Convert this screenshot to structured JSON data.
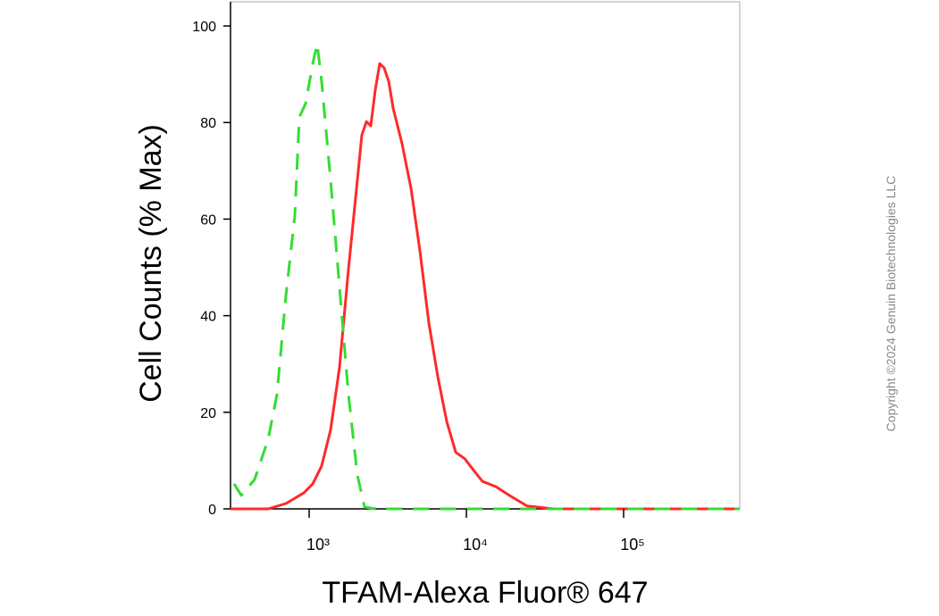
{
  "chart_data": {
    "type": "line",
    "x_label": "TFAM-Alexa Fluor® 647",
    "y_label": "Cell Counts (% Max)",
    "watermark": "Copyright ©2024 Genuin Biotechnologies LLC",
    "xscale": "log",
    "xlim": [
      316,
      548000
    ],
    "ylim": [
      0,
      105
    ],
    "xticks": [
      {
        "value": 1000,
        "label": "10³"
      },
      {
        "value": 10000,
        "label": "10⁴"
      },
      {
        "value": 100000,
        "label": "10⁵"
      }
    ],
    "yticks": [
      0,
      20,
      40,
      60,
      80,
      100
    ],
    "series": [
      {
        "color": "#ff2a2a",
        "dash": false,
        "x": [
          316,
          548,
          711,
          925,
          1054,
          1201,
          1368,
          1560,
          1778,
          2027,
          2163,
          2311,
          2466,
          2632,
          2811,
          3000,
          3206,
          3420,
          3899,
          4445,
          5067,
          5768,
          6577,
          7499,
          8551,
          9747,
          11100,
          12650,
          15400,
          18750,
          24330,
          36060,
          548000
        ],
        "values": [
          0,
          0,
          1.1,
          3.3,
          5.2,
          8.9,
          16.3,
          29.3,
          49.6,
          68.1,
          77.4,
          80.2,
          79.3,
          86.7,
          92.2,
          91.3,
          88.5,
          83,
          75.6,
          66.3,
          53.3,
          38.5,
          27.4,
          18.1,
          11.7,
          10.4,
          8.0,
          5.7,
          4.6,
          2.8,
          0.6,
          0,
          0
        ]
      },
      {
        "color": "#33dd33",
        "dash": true,
        "x": [
          333,
          370,
          450,
          548,
          624,
          711,
          811,
          866,
          948,
          1054,
          1125,
          1201,
          1368,
          1560,
          1778,
          2027,
          2250,
          2632,
          548000
        ],
        "values": [
          5.2,
          2.8,
          6.1,
          14.4,
          23.7,
          44.1,
          60.7,
          81.1,
          83.9,
          92.2,
          96.3,
          88.5,
          68.1,
          45.9,
          23.7,
          7.0,
          0.4,
          0,
          0
        ]
      }
    ]
  }
}
